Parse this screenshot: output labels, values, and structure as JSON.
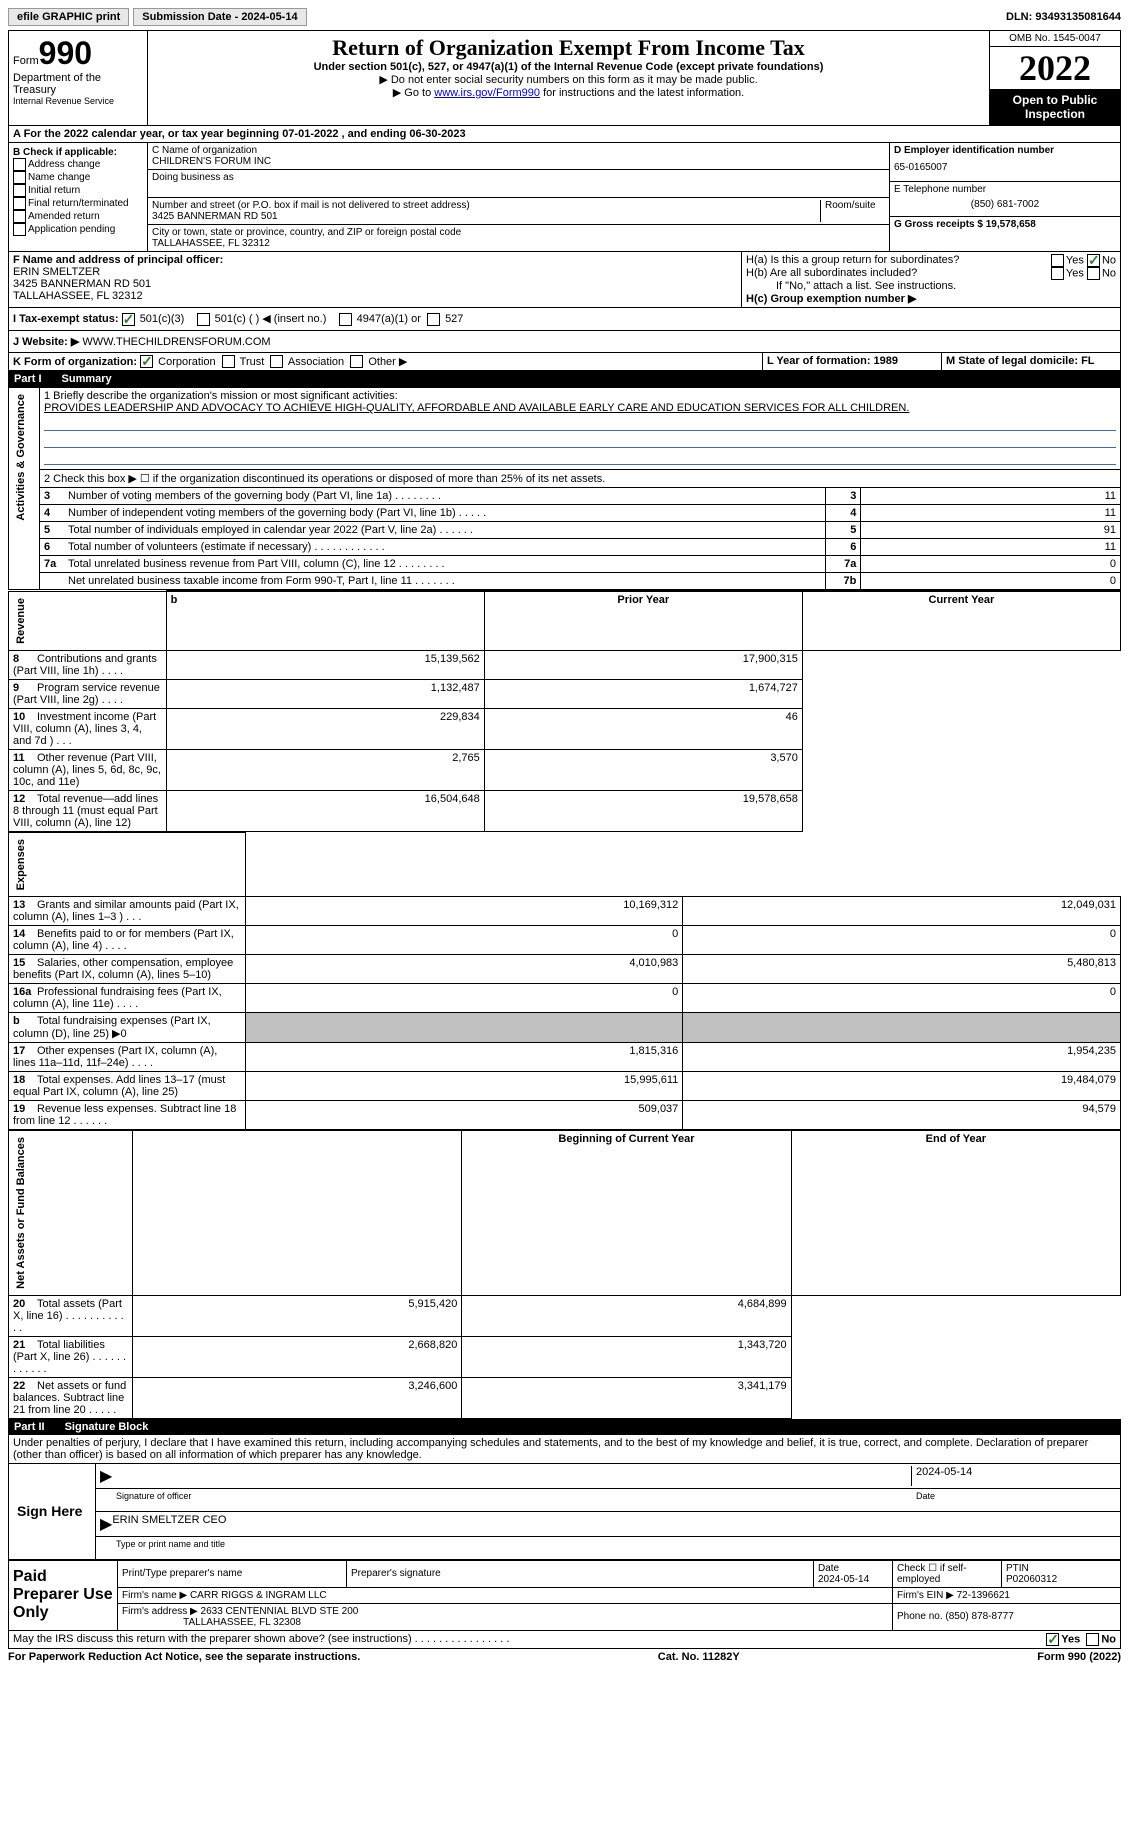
{
  "topbar": {
    "efile": "efile GRAPHIC print",
    "submission_label": "Submission Date - 2024-05-14",
    "dln_label": "DLN: 93493135081644"
  },
  "header": {
    "form_word": "Form",
    "form_num": "990",
    "dept": "Department of the Treasury",
    "irs": "Internal Revenue Service",
    "title": "Return of Organization Exempt From Income Tax",
    "subtitle": "Under section 501(c), 527, or 4947(a)(1) of the Internal Revenue Code (except private foundations)",
    "note1": "▶ Do not enter social security numbers on this form as it may be made public.",
    "note2_pre": "▶ Go to ",
    "note2_link": "www.irs.gov/Form990",
    "note2_post": " for instructions and the latest information.",
    "omb": "OMB No. 1545-0047",
    "year": "2022",
    "open": "Open to Public Inspection"
  },
  "row_a": "A For the 2022 calendar year, or tax year beginning 07-01-2022    , and ending 06-30-2023",
  "section_b": {
    "label": "B Check if applicable:",
    "items": [
      "Address change",
      "Name change",
      "Initial return",
      "Final return/terminated",
      "Amended return",
      "Application pending"
    ]
  },
  "section_c": {
    "name_label": "C Name of organization",
    "name": "CHILDREN'S FORUM INC",
    "dba_label": "Doing business as",
    "addr_label": "Number and street (or P.O. box if mail is not delivered to street address)",
    "room_label": "Room/suite",
    "addr": "3425 BANNERMAN RD 501",
    "city_label": "City or town, state or province, country, and ZIP or foreign postal code",
    "city": "TALLAHASSEE, FL  32312"
  },
  "section_d": {
    "label": "D Employer identification number",
    "ein": "65-0165007",
    "phone_label": "E Telephone number",
    "phone": "(850) 681-7002",
    "gross_label": "G Gross receipts $ 19,578,658"
  },
  "section_f": {
    "label": "F  Name and address of principal officer:",
    "name": "ERIN SMELTZER",
    "addr1": "3425 BANNERMAN RD 501",
    "addr2": "TALLAHASSEE, FL  32312"
  },
  "section_h": {
    "ha_label": "H(a)  Is this a group return for subordinates?",
    "hb_label": "H(b)  Are all subordinates included?",
    "hb_note": "If \"No,\" attach a list. See instructions.",
    "hc_label": "H(c)  Group exemption number ▶",
    "yes": "Yes",
    "no": "No"
  },
  "tax_status": {
    "label_i": "I  Tax-exempt status:",
    "opt1": "501(c)(3)",
    "opt2": "501(c) (  ) ◀ (insert no.)",
    "opt3": "4947(a)(1) or",
    "opt4": "527",
    "label_j": "J  Website: ▶",
    "website": "WWW.THECHILDRENSFORUM.COM"
  },
  "row_k": {
    "label": "K Form of organization:",
    "opts": [
      "Corporation",
      "Trust",
      "Association",
      "Other ▶"
    ],
    "l_label": "L Year of formation: 1989",
    "m_label": "M State of legal domicile: FL"
  },
  "part1": {
    "header": "Part I",
    "title": "Summary",
    "line1_label": "1  Briefly describe the organization's mission or most significant activities:",
    "line1_text": "PROVIDES LEADERSHIP AND ADVOCACY TO ACHIEVE HIGH-QUALITY, AFFORDABLE AND AVAILABLE EARLY CARE AND EDUCATION SERVICES FOR ALL CHILDREN.",
    "line2": "2    Check this box ▶ ☐  if the organization discontinued its operations or disposed of more than 25% of its net assets.",
    "vert_ag": "Activities & Governance",
    "vert_rev": "Revenue",
    "vert_exp": "Expenses",
    "vert_net": "Net Assets or Fund Balances",
    "rows_ag": [
      {
        "n": "3",
        "t": "Number of voting members of the governing body (Part VI, line 1a)   .    .    .    .    .    .    .    .",
        "box": "3",
        "v": "11"
      },
      {
        "n": "4",
        "t": "Number of independent voting members of the governing body (Part VI, line 1b)   .    .    .    .    .",
        "box": "4",
        "v": "11"
      },
      {
        "n": "5",
        "t": "Total number of individuals employed in calendar year 2022 (Part V, line 2a)   .    .    .    .    .    .",
        "box": "5",
        "v": "91"
      },
      {
        "n": "6",
        "t": "Total number of volunteers (estimate if necessary)    .    .    .    .    .    .    .    .    .    .    .    .",
        "box": "6",
        "v": "11"
      },
      {
        "n": "7a",
        "t": "Total unrelated business revenue from Part VIII, column (C), line 12    .    .    .    .    .    .    .    .",
        "box": "7a",
        "v": "0"
      },
      {
        "n": "",
        "t": "Net unrelated business taxable income from Form 990-T, Part I, line 11   .    .    .    .    .    .    .",
        "box": "7b",
        "v": "0"
      }
    ],
    "hdr_prior": "Prior Year",
    "hdr_current": "Current Year",
    "rows_rev": [
      {
        "n": "8",
        "t": "Contributions and grants (Part VIII, line 1h)   .    .    .    .",
        "p": "15,139,562",
        "c": "17,900,315"
      },
      {
        "n": "9",
        "t": "Program service revenue (Part VIII, line 2g)    .    .    .    .",
        "p": "1,132,487",
        "c": "1,674,727"
      },
      {
        "n": "10",
        "t": "Investment income (Part VIII, column (A), lines 3, 4, and 7d )    .    .    .",
        "p": "229,834",
        "c": "46"
      },
      {
        "n": "11",
        "t": "Other revenue (Part VIII, column (A), lines 5, 6d, 8c, 9c, 10c, and 11e)",
        "p": "2,765",
        "c": "3,570"
      },
      {
        "n": "12",
        "t": "Total revenue—add lines 8 through 11 (must equal Part VIII, column (A), line 12)",
        "p": "16,504,648",
        "c": "19,578,658"
      }
    ],
    "rows_exp": [
      {
        "n": "13",
        "t": "Grants and similar amounts paid (Part IX, column (A), lines 1–3 )   .    .    .",
        "p": "10,169,312",
        "c": "12,049,031"
      },
      {
        "n": "14",
        "t": "Benefits paid to or for members (Part IX, column (A), line 4)   .    .    .    .",
        "p": "0",
        "c": "0"
      },
      {
        "n": "15",
        "t": "Salaries, other compensation, employee benefits (Part IX, column (A), lines 5–10)",
        "p": "4,010,983",
        "c": "5,480,813"
      },
      {
        "n": "16a",
        "t": "Professional fundraising fees (Part IX, column (A), line 11e)   .    .    .    .",
        "p": "0",
        "c": "0"
      },
      {
        "n": "b",
        "t": "Total fundraising expenses (Part IX, column (D), line 25) ▶0",
        "p": "",
        "c": "",
        "grey": true
      },
      {
        "n": "17",
        "t": "Other expenses (Part IX, column (A), lines 11a–11d, 11f–24e)   .    .    .    .",
        "p": "1,815,316",
        "c": "1,954,235"
      },
      {
        "n": "18",
        "t": "Total expenses. Add lines 13–17 (must equal Part IX, column (A), line 25)",
        "p": "15,995,611",
        "c": "19,484,079"
      },
      {
        "n": "19",
        "t": "Revenue less expenses. Subtract line 18 from line 12   .    .    .    .    .    .",
        "p": "509,037",
        "c": "94,579"
      }
    ],
    "hdr_boy": "Beginning of Current Year",
    "hdr_eoy": "End of Year",
    "rows_net": [
      {
        "n": "20",
        "t": "Total assets (Part X, line 16)   .    .    .    .    .    .    .    .    .    .    .    .",
        "p": "5,915,420",
        "c": "4,684,899"
      },
      {
        "n": "21",
        "t": "Total liabilities (Part X, line 26)   .    .    .    .    .    .    .    .    .    .    .    .",
        "p": "2,668,820",
        "c": "1,343,720"
      },
      {
        "n": "22",
        "t": "Net assets or fund balances. Subtract line 21 from line 20   .    .    .    .    .",
        "p": "3,246,600",
        "c": "3,341,179"
      }
    ]
  },
  "part2": {
    "header": "Part II",
    "title": "Signature Block",
    "penalty": "Under penalties of perjury, I declare that I have examined this return, including accompanying schedules and statements, and to the best of my knowledge and belief, it is true, correct, and complete. Declaration of preparer (other than officer) is based on all information of which preparer has any knowledge.",
    "sign_here": "Sign Here",
    "sig_officer": "Signature of officer",
    "sig_date": "2024-05-14",
    "date_label": "Date",
    "officer_name": "ERIN SMELTZER CEO",
    "type_name": "Type or print name and title",
    "paid_prep": "Paid Preparer Use Only",
    "prep_name_label": "Print/Type preparer's name",
    "prep_sig_label": "Preparer's signature",
    "prep_date_label": "Date",
    "prep_date": "2024-05-14",
    "check_self": "Check ☐ if self-employed",
    "ptin_label": "PTIN",
    "ptin": "P02060312",
    "firm_name_label": "Firm's name    ▶",
    "firm_name": "CARR RIGGS & INGRAM LLC",
    "firm_ein_label": "Firm's EIN ▶",
    "firm_ein": "72-1396621",
    "firm_addr_label": "Firm's address ▶",
    "firm_addr1": "2633 CENTENNIAL BLVD STE 200",
    "firm_addr2": "TALLAHASSEE, FL  32308",
    "firm_phone_label": "Phone no.",
    "firm_phone": "(850) 878-8777",
    "discuss": "May the IRS discuss this return with the preparer shown above? (see instructions)   .    .    .    .    .    .    .    .    .    .    .    .    .    .    .    ."
  },
  "footer": {
    "left": "For Paperwork Reduction Act Notice, see the separate instructions.",
    "center": "Cat. No. 11282Y",
    "right": "Form 990 (2022)"
  }
}
